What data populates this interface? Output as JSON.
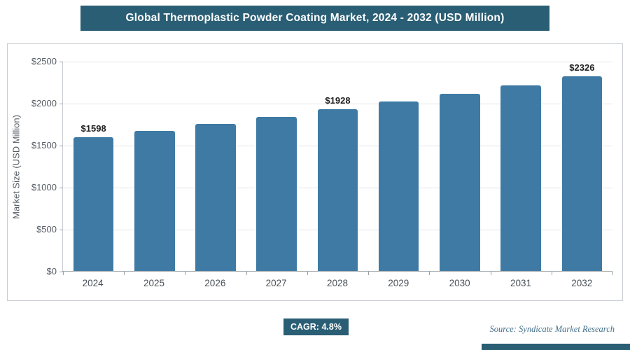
{
  "title": "Global Thermoplastic Powder Coating Market, 2024 - 2032 (USD Million)",
  "chart_data": {
    "type": "bar",
    "title": "Global Thermoplastic Powder Coating Market, 2024 - 2032 (USD Million)",
    "categories": [
      "2024",
      "2025",
      "2026",
      "2027",
      "2028",
      "2029",
      "2030",
      "2031",
      "2032"
    ],
    "values": [
      1598,
      1675,
      1755,
      1840,
      1928,
      2021,
      2118,
      2220,
      2326
    ],
    "data_labels": [
      "$1598",
      "",
      "",
      "",
      "$1928",
      "",
      "",
      "",
      "$2326"
    ],
    "xlabel": "",
    "ylabel": "Market Size (USD Million)",
    "ylim": [
      0,
      2500
    ],
    "yticks": [
      0,
      500,
      1000,
      1500,
      2000,
      2500
    ],
    "ytick_labels": [
      "$0",
      "$500",
      "$1000",
      "$1500",
      "$2000",
      "$2500"
    ],
    "grid": "horizontal",
    "legend": "none",
    "bar_color": "#3e7aa4"
  },
  "footer": {
    "cagr_label": "CAGR: 4.8%",
    "source": "Source: Syndicate Market Research"
  },
  "colors": {
    "header_bg": "#2a5e74",
    "bar": "#3e7aa4",
    "accent": "#2a5e74"
  }
}
